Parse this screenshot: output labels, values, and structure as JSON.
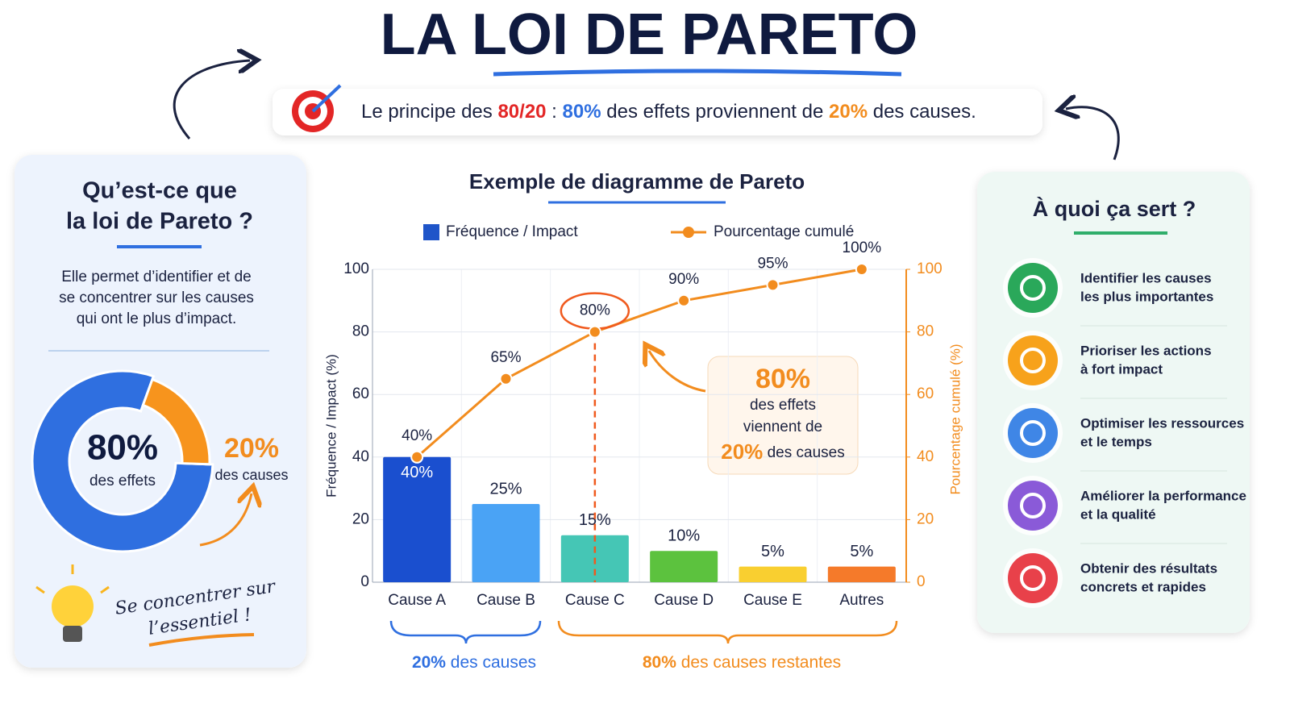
{
  "header": {
    "title": "LA LOI DE PARETO",
    "tagline": [
      "Le principe des ",
      "80/20",
      " : ",
      "80%",
      " des effets proviennent de ",
      "20%",
      " des causes."
    ]
  },
  "left_panel": {
    "title": [
      "Qu’est-ce que",
      "la loi de Pareto ?"
    ],
    "text": [
      "Elle permet d’identifier et de",
      "se concentrer sur les causes",
      "qui ont le plus d’impact."
    ],
    "donut": {
      "values": [
        80,
        20
      ],
      "value_labels": [
        "80%",
        "20%"
      ],
      "captions": [
        "des effets",
        "des causes"
      ],
      "colors": [
        "#2f6fe0",
        "#f7941d"
      ]
    },
    "note": [
      "Se concentrer sur",
      "l’essentiel !"
    ]
  },
  "chart_data": {
    "type": "bar",
    "title": "Exemple de diagramme de Pareto",
    "categories": [
      "Cause A",
      "Cause B",
      "Cause C",
      "Cause D",
      "Cause E",
      "Autres"
    ],
    "series": [
      {
        "name": "Fréquence / Impact",
        "color": "#1f55c9",
        "colors": [
          "#1a4fcf",
          "#4aa3f5",
          "#45c6b5",
          "#5cc23e",
          "#f9cf30",
          "#f57a2a"
        ],
        "values": [
          40,
          25,
          15,
          10,
          5,
          5
        ],
        "value_labels": [
          "40%",
          "25%",
          "15%",
          "10%",
          "5%",
          "5%"
        ]
      },
      {
        "name": "Pourcentage cumulé",
        "type": "line",
        "axis": "y2",
        "color": "#f28c1e",
        "values": [
          40,
          65,
          80,
          90,
          95,
          100
        ],
        "value_labels": [
          "40%",
          "65%",
          "80%",
          "90%",
          "95%",
          "100%"
        ]
      }
    ],
    "ylabel": "Fréquence / Impact (%)",
    "y2label": "Pourcentage cumulé (%)",
    "ylim": [
      0,
      100
    ],
    "yticks": [
      0,
      20,
      40,
      60,
      80,
      100
    ],
    "y2lim": [
      0,
      100
    ],
    "y2ticks": [
      0,
      20,
      40,
      60,
      80,
      100
    ],
    "grid": true,
    "callout": [
      "80%",
      "des effets",
      "viennent de",
      "20%",
      " des causes"
    ],
    "brackets": [
      [
        "20%",
        " des causes"
      ],
      [
        "80%",
        " des causes restantes"
      ]
    ]
  },
  "right_panel": {
    "title": "À quoi ça sert ?",
    "items": [
      [
        "Identifier les causes",
        "les plus importantes"
      ],
      [
        "Prioriser les actions",
        "à fort impact"
      ],
      [
        "Optimiser les ressources",
        "et le temps"
      ],
      [
        "Améliorer la performance",
        "et la qualité"
      ],
      [
        "Obtenir des résultats",
        "concrets et rapides"
      ]
    ]
  }
}
